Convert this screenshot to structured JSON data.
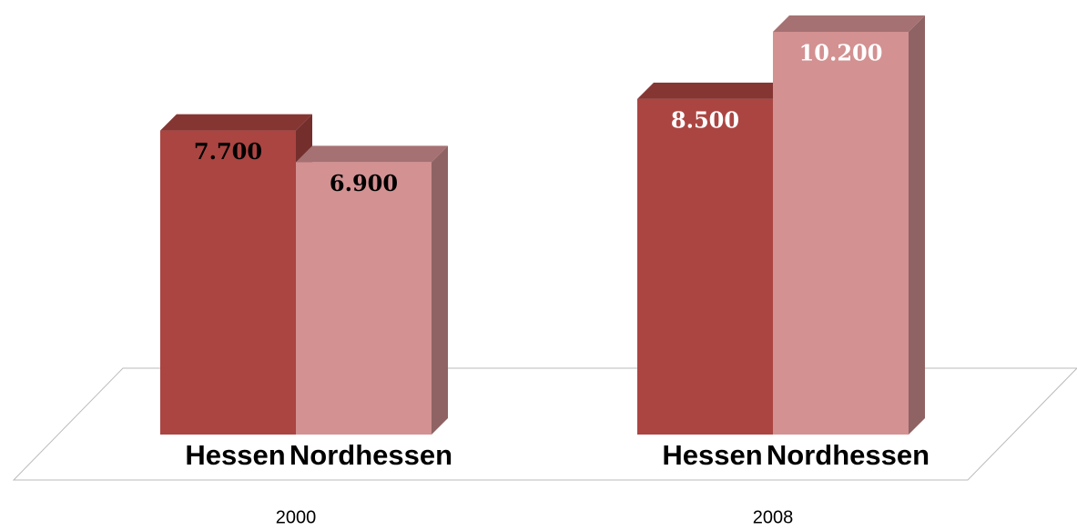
{
  "chart_data": {
    "type": "bar3d",
    "categories": [
      "2000",
      "2008"
    ],
    "series": [
      {
        "name": "Hessen",
        "color": "#ab4542",
        "values": [
          7700,
          8500
        ],
        "value_labels": [
          "7.700",
          "8.500"
        ]
      },
      {
        "name": "Nordhessen",
        "color": "#d39192",
        "values": [
          6900,
          10200
        ],
        "value_labels": [
          "6.900",
          "10.200"
        ]
      }
    ]
  }
}
